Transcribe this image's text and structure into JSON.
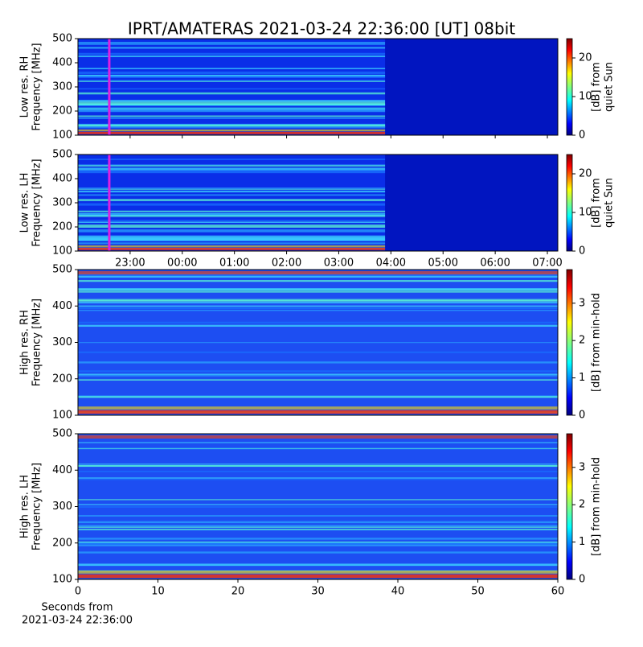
{
  "title": "IPRT/AMATERAS 2021-03-24 22:36:00 [UT]   08bit",
  "chart_data": [
    {
      "type": "heatmap",
      "ylabel": [
        "Low res. RH",
        "Frequency [MHz]"
      ],
      "ylim": [
        100,
        500
      ],
      "yticks": [
        100,
        200,
        300,
        400,
        500
      ],
      "xlim": [
        22.0,
        31.2
      ],
      "marker": 22.6,
      "marker_color": "#e020e0",
      "colorbar": {
        "label": [
          "[dB] from",
          "quiet Sun"
        ],
        "lim": [
          0,
          25
        ],
        "ticks": [
          0,
          10,
          20
        ]
      }
    },
    {
      "type": "heatmap",
      "ylabel": [
        "Low res. LH",
        "Frequency [MHz]"
      ],
      "ylim": [
        100,
        500
      ],
      "yticks": [
        100,
        200,
        300,
        400,
        500
      ],
      "xlim": [
        22.0,
        31.2
      ],
      "marker": 22.6,
      "marker_color": "#e020e0",
      "xticks": [
        {
          "value": 23,
          "label": "23:00"
        },
        {
          "value": 24,
          "label": "00:00"
        },
        {
          "value": 25,
          "label": "01:00"
        },
        {
          "value": 26,
          "label": "02:00"
        },
        {
          "value": 27,
          "label": "03:00"
        },
        {
          "value": 28,
          "label": "04:00"
        },
        {
          "value": 29,
          "label": "05:00"
        },
        {
          "value": 30,
          "label": "06:00"
        },
        {
          "value": 31,
          "label": "07:00"
        }
      ],
      "colorbar": {
        "label": [
          "[dB] from",
          "quiet Sun"
        ],
        "lim": [
          0,
          25
        ],
        "ticks": [
          0,
          10,
          20
        ]
      }
    },
    {
      "type": "heatmap",
      "ylabel": [
        "High res. RH",
        "Frequency [MHz]"
      ],
      "ylim": [
        100,
        500
      ],
      "yticks": [
        100,
        200,
        300,
        400,
        500
      ],
      "xlim": [
        0,
        60
      ],
      "colorbar": {
        "label": [
          "[dB] from min-hold"
        ],
        "lim": [
          0,
          3.9
        ],
        "ticks": [
          0,
          1,
          2,
          3
        ]
      }
    },
    {
      "type": "heatmap",
      "ylabel": [
        "High res. LH",
        "Frequency [MHz]"
      ],
      "ylim": [
        100,
        500
      ],
      "yticks": [
        100,
        200,
        300,
        400,
        500
      ],
      "xlim": [
        0,
        60
      ],
      "xticks": [
        0,
        10,
        20,
        30,
        40,
        50,
        60
      ],
      "xlabel": [
        "Seconds from",
        "2021-03-24 22:36:00"
      ],
      "colorbar": {
        "label": [
          "[dB] from min-hold"
        ],
        "lim": [
          0,
          3.9
        ],
        "ticks": [
          0,
          1,
          2,
          3
        ]
      }
    }
  ]
}
